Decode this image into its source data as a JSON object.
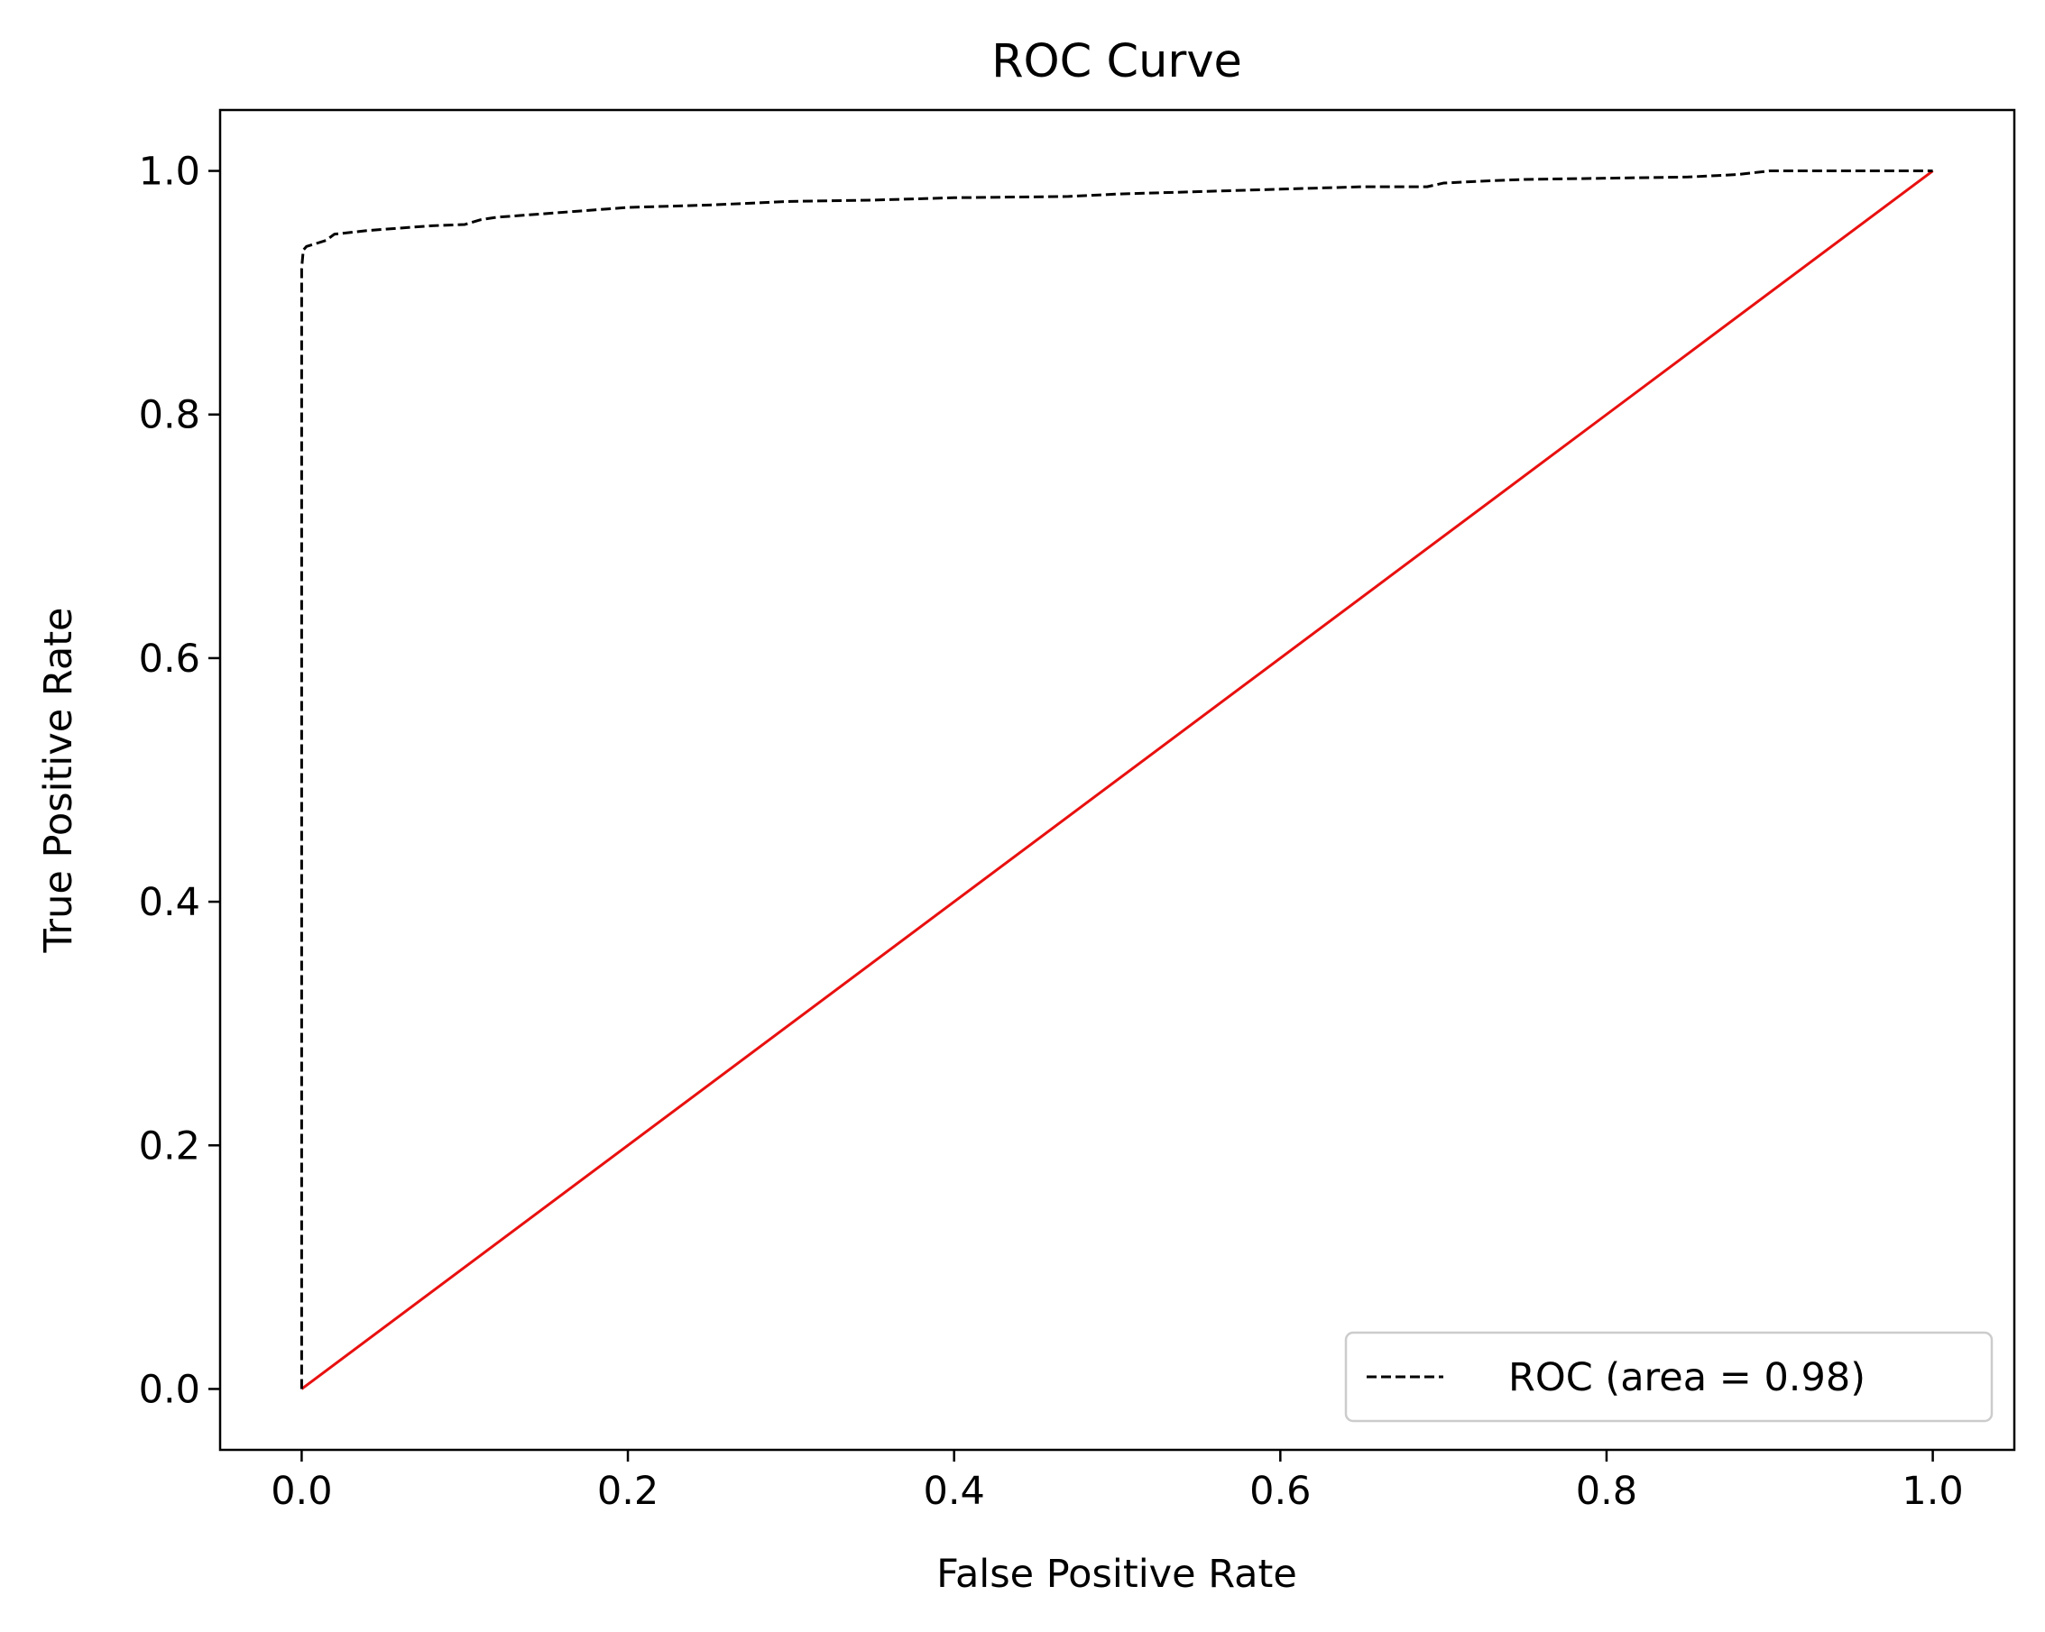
{
  "chart_data": {
    "type": "line",
    "title": "ROC Curve",
    "xlabel": "False Positive Rate",
    "ylabel": "True Positive Rate",
    "xlim": [
      -0.05,
      1.05
    ],
    "ylim": [
      -0.05,
      1.05
    ],
    "xticks": [
      "0.0",
      "0.2",
      "0.4",
      "0.6",
      "0.8",
      "1.0"
    ],
    "yticks": [
      "0.0",
      "0.2",
      "0.4",
      "0.6",
      "0.8",
      "1.0"
    ],
    "grid": false,
    "legend": {
      "position": "lower-right",
      "text": "ROC (area = 0.98)"
    },
    "series": [
      {
        "name": "ROC (area = 0.98)",
        "color": "#000000",
        "style": "dashed",
        "x": [
          0.0,
          0.0,
          0.0,
          0.001,
          0.003,
          0.008,
          0.015,
          0.02,
          0.04,
          0.06,
          0.08,
          0.1,
          0.11,
          0.12,
          0.15,
          0.18,
          0.2,
          0.25,
          0.3,
          0.35,
          0.4,
          0.47,
          0.5,
          0.55,
          0.6,
          0.65,
          0.69,
          0.7,
          0.73,
          0.75,
          0.8,
          0.85,
          0.88,
          0.9,
          0.95,
          1.0
        ],
        "y": [
          0.0,
          0.5,
          0.92,
          0.935,
          0.938,
          0.94,
          0.943,
          0.948,
          0.951,
          0.953,
          0.955,
          0.956,
          0.96,
          0.962,
          0.965,
          0.968,
          0.97,
          0.972,
          0.975,
          0.976,
          0.978,
          0.979,
          0.981,
          0.983,
          0.985,
          0.987,
          0.987,
          0.99,
          0.992,
          0.993,
          0.994,
          0.995,
          0.997,
          1.0,
          1.0,
          1.0
        ]
      },
      {
        "name": "",
        "color": "#e8100f",
        "style": "solid",
        "x": [
          0.0,
          1.0
        ],
        "y": [
          0.0,
          1.0
        ]
      }
    ]
  }
}
